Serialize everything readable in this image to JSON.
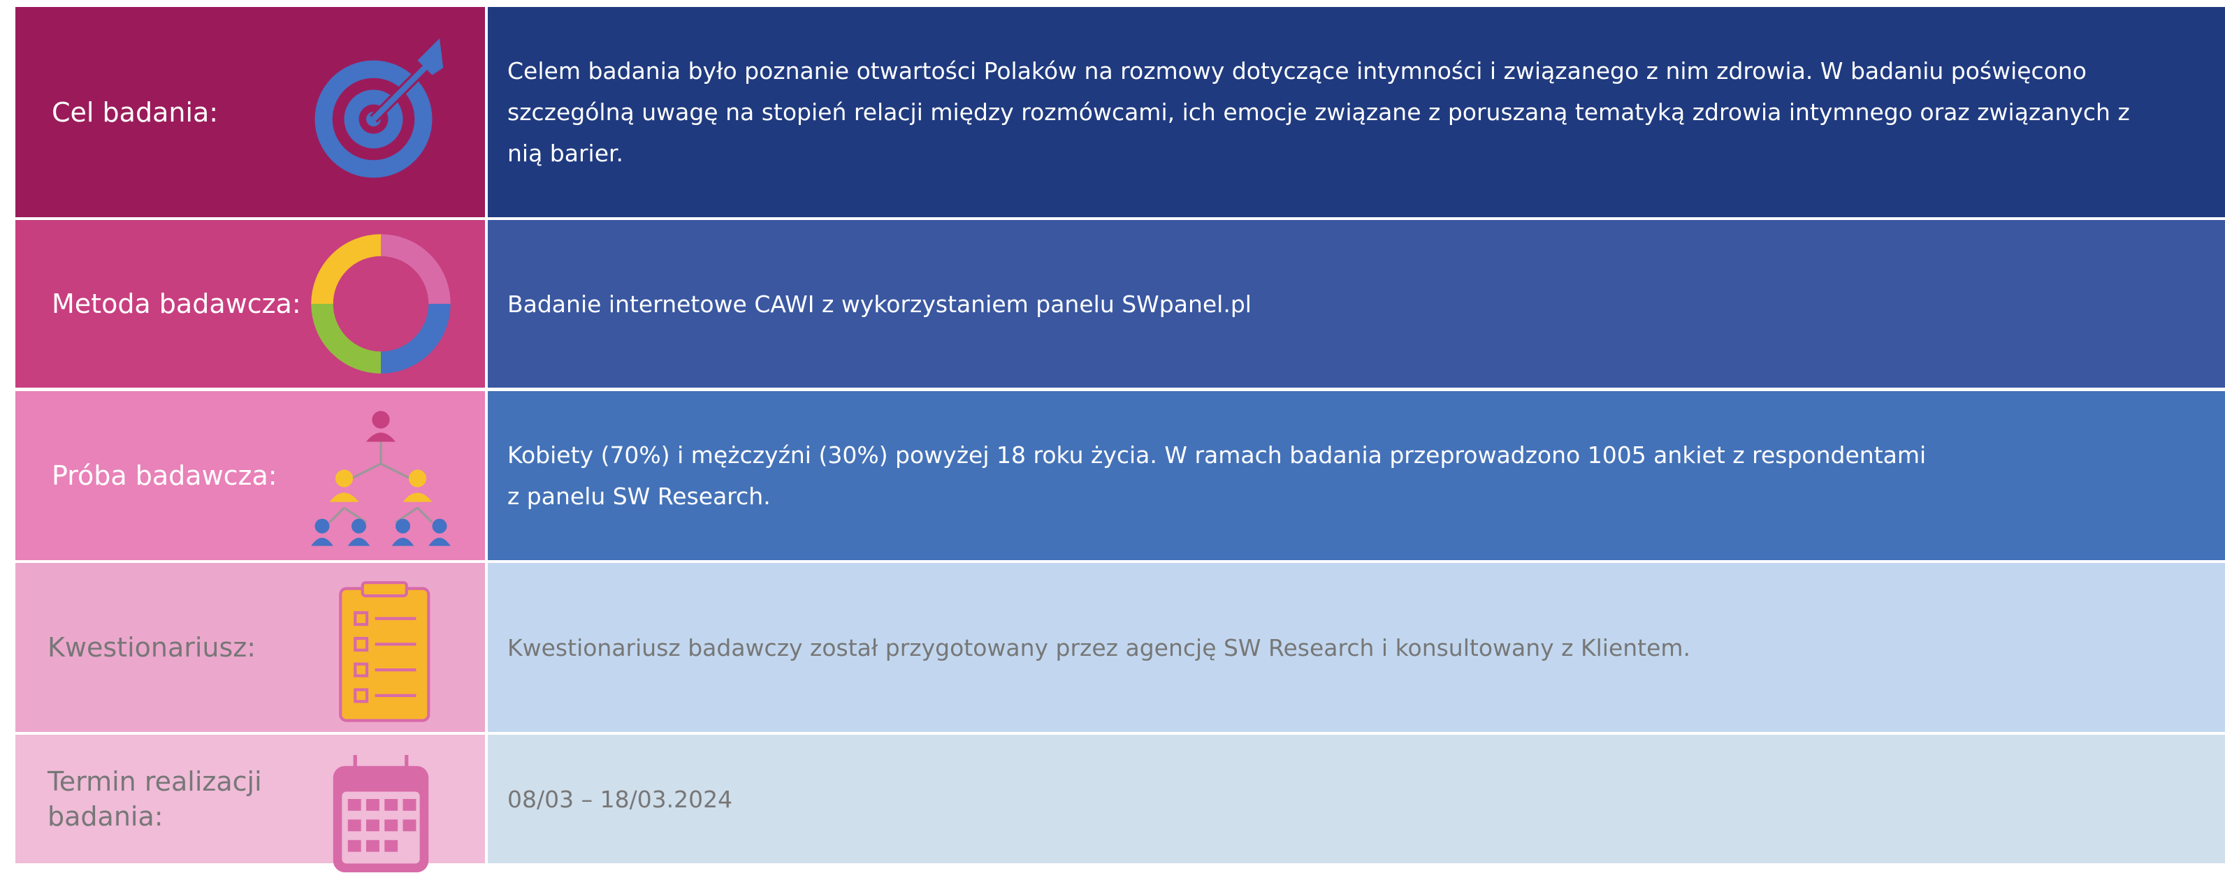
{
  "rows": [
    {
      "label": [
        "Cel badania:"
      ],
      "text": [
        "Celem badania było poznanie otwartości Polaków na rozmowy dotyczące intymności i związanego z nim zdrowia. W badaniu poświęcono",
        "szczególną uwagę na stopień relacji między rozmówcami, ich emocje związane z poruszaną tematyką zdrowia intymnego oraz związanych z",
        "nią barier."
      ]
    },
    {
      "label": [
        "Metoda badawcza:"
      ],
      "text": [
        "Badanie internetowe CAWI z wykorzystaniem panelu SWpanel.pl"
      ]
    },
    {
      "label": [
        "Próba badawcza:"
      ],
      "text": [
        "Kobiety (70%) i mężczyźni (30%) powyżej 18 roku życia. W ramach badania przeprowadzono 1005 ankiet z respondentami",
        "z panelu SW Research."
      ]
    },
    {
      "label": [
        "Kwestionariusz:"
      ],
      "text": [
        "Kwestionariusz badawczy został przygotowany przez agencję SW Research i konsultowany z Klientem."
      ]
    },
    {
      "label": [
        "Termin realizacji",
        "badania:"
      ],
      "text": [
        "08/03 – 18/03.2024"
      ]
    }
  ]
}
